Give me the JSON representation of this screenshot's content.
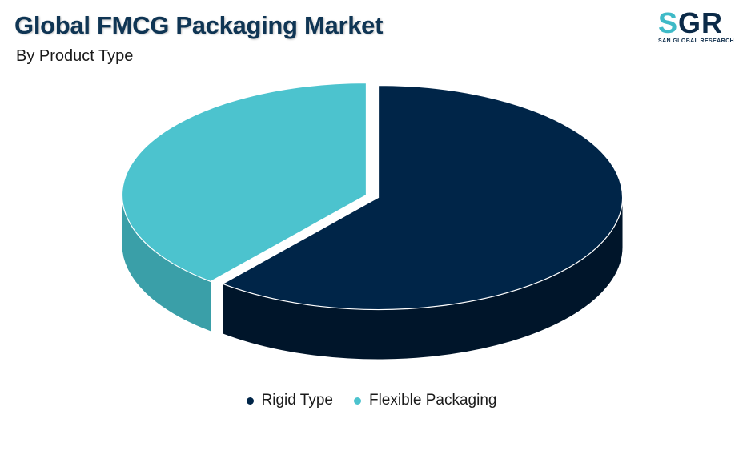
{
  "header": {
    "title": "Global FMCG Packaging Market",
    "subtitle": "By Product Type"
  },
  "logo": {
    "letters_s": "S",
    "letters_rest": "GR",
    "tagline": "SAN GLOBAL RESEARCH"
  },
  "chart_data": {
    "type": "pie",
    "style": "3d-exploded",
    "title": "Global FMCG Packaging Market",
    "subtitle": "By Product Type",
    "legend_position": "bottom-center",
    "slices": [
      {
        "name": "Rigid Type",
        "value": 61,
        "color": "#002548",
        "side_color": "#00152a"
      },
      {
        "name": "Flexible Packaging",
        "value": 39,
        "color": "#4cc3ce",
        "side_color": "#3a9fa8"
      }
    ]
  }
}
